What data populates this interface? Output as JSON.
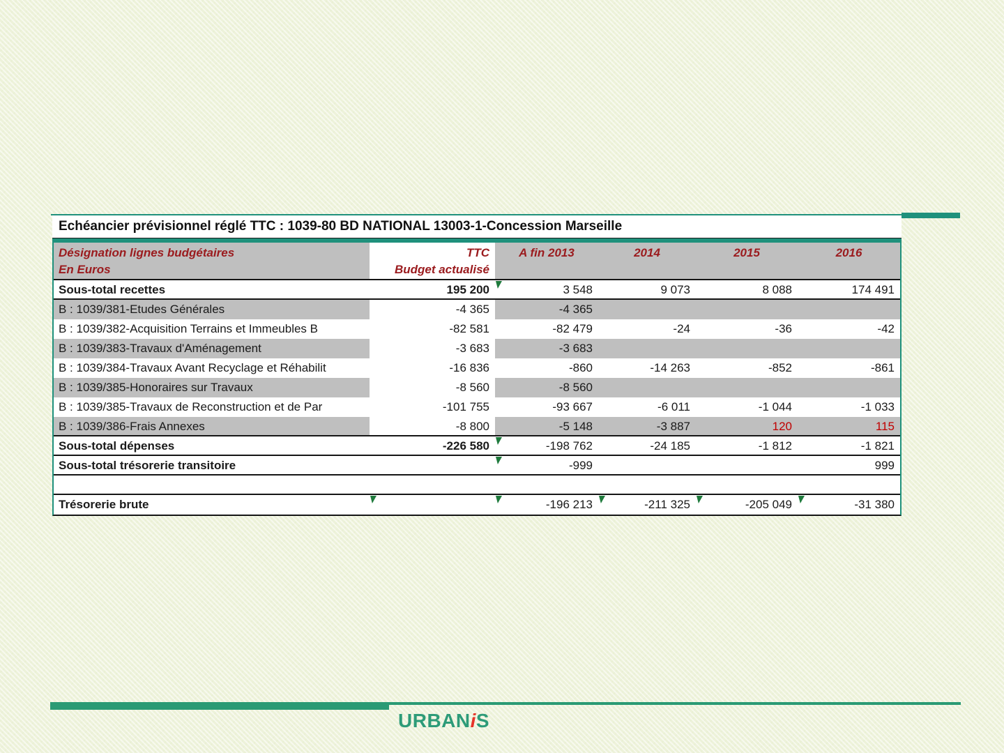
{
  "title_bar": "Echéancier prévisionnel réglé TTC : 1039-80 BD NATIONAL 13003-1-Concession Marseille",
  "header": {
    "designation_line1": "Désignation lignes budgétaires",
    "designation_line2": "En Euros",
    "ttc_line1": "TTC",
    "ttc_line2": "Budget actualisé",
    "year_cols": [
      "A fin 2013",
      "2014",
      "2015",
      "2016"
    ]
  },
  "rows": [
    {
      "label": "Sous-total recettes",
      "values": [
        "195 200",
        "3 548",
        "9 073",
        "8 088",
        "174 491"
      ]
    },
    {
      "label": "B : 1039/381-Etudes Générales",
      "values": [
        "-4 365",
        "-4 365",
        "",
        "",
        ""
      ]
    },
    {
      "label": "B : 1039/382-Acquisition Terrains et Immeubles B",
      "values": [
        "-82 581",
        "-82 479",
        "-24",
        "-36",
        "-42"
      ]
    },
    {
      "label": "B : 1039/383-Travaux d'Aménagement",
      "values": [
        "-3 683",
        "-3 683",
        "",
        "",
        ""
      ]
    },
    {
      "label": "B : 1039/384-Travaux Avant Recyclage et Réhabilit",
      "values": [
        "-16 836",
        "-860",
        "-14 263",
        "-852",
        "-861"
      ]
    },
    {
      "label": "B : 1039/385-Honoraires sur Travaux",
      "values": [
        "-8 560",
        "-8 560",
        "",
        "",
        ""
      ]
    },
    {
      "label": "B : 1039/385-Travaux de Reconstruction et de Par",
      "values": [
        "-101 755",
        "-93 667",
        "-6 011",
        "-1 044",
        "-1 033"
      ]
    },
    {
      "label": "B : 1039/386-Frais Annexes",
      "values": [
        "-8 800",
        "-5 148",
        "-3 887",
        "120",
        "115"
      ]
    },
    {
      "label": "Sous-total dépenses",
      "values": [
        "-226 580",
        "-198 762",
        "-24 185",
        "-1 812",
        "-1 821"
      ]
    },
    {
      "label": "Sous-total trésorerie transitoire",
      "values": [
        "",
        "-999",
        "",
        "",
        "999"
      ]
    },
    {
      "label": "",
      "values": [
        "",
        "",
        "",
        "",
        ""
      ]
    },
    {
      "label": "Trésorerie brute",
      "values": [
        "",
        "-196 213",
        "-211 325",
        "-205 049",
        "-31 380"
      ]
    }
  ],
  "footer": {
    "logo_part1": "URBAN",
    "logo_part2": "i",
    "logo_part3": "S"
  },
  "colors": {
    "accent_teal": "#1f917c",
    "bottom_bar_green": "#2a9a74",
    "header_text_red": "#9b1b1e",
    "value_red": "#c00000",
    "shaded_gray": "#bfbfbf",
    "flag_green": "#1e7a3c",
    "logo_teal": "#2d9b78",
    "logo_red": "#e63329",
    "slide_background": "#edf2da"
  }
}
